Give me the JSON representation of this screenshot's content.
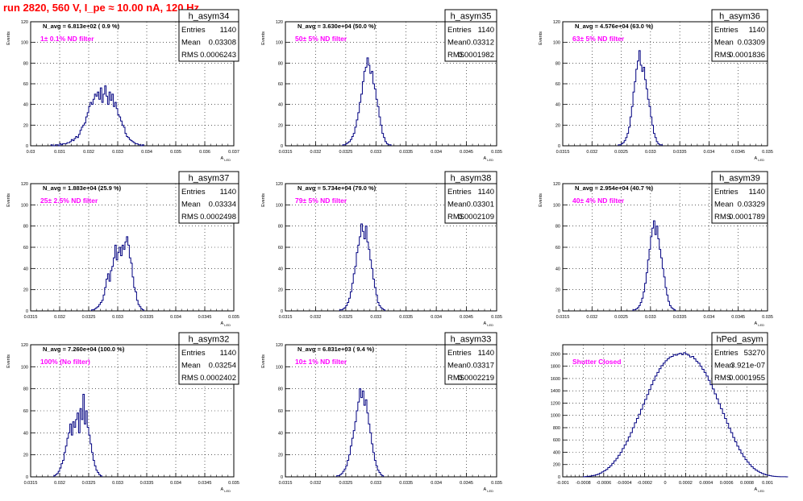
{
  "page_title": "run 2820,   560 V, I_pe ≈ 10.00 nA, 120 Hz",
  "chart_data": [
    {
      "type": "histogram",
      "name": "h_asym34",
      "ylabel": "Events",
      "xlabel": "A_LED",
      "xlim": [
        0.03,
        0.037
      ],
      "ylim": [
        0,
        120
      ],
      "xticks": [
        0.03,
        0.031,
        0.032,
        0.033,
        0.034,
        0.035,
        0.036,
        0.037
      ],
      "xtick_labels": [
        "0.03",
        "0.031",
        "0.032",
        "0.033",
        "0.034",
        "0.035",
        "0.036",
        "0.037"
      ],
      "yticks": [
        0,
        20,
        40,
        60,
        80,
        100,
        120
      ],
      "navg": "N_avg = 6.813e+02 ( 0.9 %)",
      "filter": "1± 0.1% ND filter",
      "stats": {
        "entries": "1140",
        "mean": "0.03308",
        "rms": "0.0006243"
      },
      "bin_start": 0.0307,
      "bin_width": 5e-05,
      "counts": [
        1,
        0,
        0,
        1,
        1,
        0,
        2,
        1,
        2,
        2,
        2,
        3,
        3,
        4,
        6,
        5,
        7,
        9,
        8,
        11,
        15,
        18,
        20,
        22,
        28,
        32,
        38,
        42,
        40,
        45,
        50,
        48,
        52,
        45,
        56,
        42,
        50,
        58,
        48,
        40,
        52,
        44,
        50,
        38,
        42,
        36,
        30,
        28,
        24,
        20,
        18,
        12,
        9,
        8,
        6,
        5,
        4,
        3,
        2,
        2,
        1,
        1,
        0,
        1
      ]
    },
    {
      "type": "histogram",
      "name": "h_asym35",
      "ylabel": "Events",
      "xlabel": "A_LED",
      "xlim": [
        0.0315,
        0.035
      ],
      "ylim": [
        0,
        120
      ],
      "xticks": [
        0.0315,
        0.032,
        0.0325,
        0.033,
        0.0335,
        0.034,
        0.0345,
        0.035
      ],
      "xtick_labels": [
        "0.0315",
        "0.032",
        "0.0325",
        "0.033",
        "0.0335",
        "0.034",
        "0.0345",
        "0.035"
      ],
      "yticks": [
        0,
        20,
        40,
        60,
        80,
        100,
        120
      ],
      "navg": "N_avg = 3.630e+04 (50.0 %)",
      "filter": "50± 5% ND filter",
      "stats": {
        "entries": "1140",
        "mean": "0.03312",
        "rms": "0.0001982"
      },
      "bin_start": 0.03245,
      "bin_width": 2.5e-05,
      "counts": [
        1,
        1,
        2,
        3,
        4,
        6,
        9,
        12,
        18,
        25,
        32,
        42,
        50,
        62,
        72,
        76,
        85,
        78,
        70,
        72,
        60,
        55,
        45,
        38,
        28,
        20,
        12,
        8,
        4,
        2,
        1,
        1
      ]
    },
    {
      "type": "histogram",
      "name": "h_asym36",
      "ylabel": "Events",
      "xlabel": "A_LED",
      "xlim": [
        0.0315,
        0.035
      ],
      "ylim": [
        0,
        120
      ],
      "xticks": [
        0.0315,
        0.032,
        0.0325,
        0.033,
        0.0335,
        0.034,
        0.0345,
        0.035
      ],
      "xtick_labels": [
        "0.0315",
        "0.032",
        "0.0325",
        "0.033",
        "0.0335",
        "0.034",
        "0.0345",
        "0.035"
      ],
      "yticks": [
        0,
        20,
        40,
        60,
        80,
        100,
        120
      ],
      "navg": "N_avg = 4.576e+04 (63.0 %)",
      "filter": "63± 5% ND filter",
      "stats": {
        "entries": "1140",
        "mean": "0.03309",
        "rms": "0.0001836"
      },
      "bin_start": 0.03245,
      "bin_width": 2.5e-05,
      "counts": [
        1,
        1,
        2,
        3,
        5,
        8,
        12,
        18,
        28,
        38,
        52,
        62,
        74,
        82,
        92,
        78,
        72,
        76,
        64,
        55,
        45,
        38,
        28,
        20,
        12,
        8,
        4,
        2,
        1,
        1
      ]
    },
    {
      "type": "histogram",
      "name": "h_asym37",
      "ylabel": "Events",
      "xlabel": "A_LED",
      "xlim": [
        0.0315,
        0.035
      ],
      "ylim": [
        0,
        120
      ],
      "xticks": [
        0.0315,
        0.032,
        0.0325,
        0.033,
        0.0335,
        0.034,
        0.0345,
        0.035
      ],
      "xtick_labels": [
        "0.0315",
        "0.032",
        "0.0325",
        "0.033",
        "0.0335",
        "0.034",
        "0.0345",
        "0.035"
      ],
      "yticks": [
        0,
        20,
        40,
        60,
        80,
        100,
        120
      ],
      "navg": "N_avg = 1.883e+04 (25.9 %)",
      "filter": "25± 2.5% ND filter",
      "stats": {
        "entries": "1140",
        "mean": "0.03334",
        "rms": "0.0002498"
      },
      "bin_start": 0.03255,
      "bin_width": 2.5e-05,
      "counts": [
        1,
        1,
        2,
        3,
        4,
        6,
        8,
        10,
        15,
        22,
        30,
        35,
        28,
        38,
        42,
        50,
        62,
        48,
        55,
        60,
        52,
        62,
        58,
        65,
        70,
        62,
        50,
        45,
        32,
        22,
        18,
        10,
        6,
        4,
        2,
        1
      ]
    },
    {
      "type": "histogram",
      "name": "h_asym38",
      "ylabel": "Events",
      "xlabel": "A_LED",
      "xlim": [
        0.0315,
        0.035
      ],
      "ylim": [
        0,
        120
      ],
      "xticks": [
        0.0315,
        0.032,
        0.0325,
        0.033,
        0.0335,
        0.034,
        0.0345,
        0.035
      ],
      "xtick_labels": [
        "0.0315",
        "0.032",
        "0.0325",
        "0.033",
        "0.0335",
        "0.034",
        "0.0345",
        "0.035"
      ],
      "yticks": [
        0,
        20,
        40,
        60,
        80,
        100,
        120
      ],
      "navg": "N_avg = 5.734e+04 (79.0 %)",
      "filter": "79± 5% ND filter",
      "stats": {
        "entries": "1140",
        "mean": "0.03301",
        "rms": "0.0002109"
      },
      "bin_start": 0.0324,
      "bin_width": 2.5e-05,
      "counts": [
        1,
        1,
        2,
        3,
        5,
        8,
        12,
        18,
        26,
        35,
        42,
        55,
        62,
        70,
        82,
        75,
        68,
        80,
        65,
        58,
        48,
        40,
        30,
        22,
        15,
        8,
        5,
        3,
        2,
        1
      ]
    },
    {
      "type": "histogram",
      "name": "h_asym39",
      "ylabel": "Events",
      "xlabel": "A_LED",
      "xlim": [
        0.0315,
        0.035
      ],
      "ylim": [
        0,
        120
      ],
      "xticks": [
        0.0315,
        0.032,
        0.0325,
        0.033,
        0.0335,
        0.034,
        0.0345,
        0.035
      ],
      "xtick_labels": [
        "0.0315",
        "0.032",
        "0.0325",
        "0.033",
        "0.0335",
        "0.034",
        "0.0345",
        "0.035"
      ],
      "yticks": [
        0,
        20,
        40,
        60,
        80,
        100,
        120
      ],
      "navg": "N_avg = 2.954e+04 (40.7 %)",
      "filter": "40± 4% ND filter",
      "stats": {
        "entries": "1140",
        "mean": "0.03329",
        "rms": "0.0001789"
      },
      "bin_start": 0.0327,
      "bin_width": 2.5e-05,
      "counts": [
        1,
        1,
        2,
        3,
        5,
        8,
        12,
        18,
        26,
        36,
        48,
        58,
        70,
        78,
        85,
        72,
        80,
        68,
        58,
        50,
        40,
        32,
        22,
        15,
        9,
        5,
        3,
        2,
        1
      ]
    },
    {
      "type": "histogram",
      "name": "h_asym32",
      "ylabel": "Events",
      "xlabel": "A_LED",
      "xlim": [
        0.0315,
        0.035
      ],
      "ylim": [
        0,
        120
      ],
      "xticks": [
        0.0315,
        0.032,
        0.0325,
        0.033,
        0.0335,
        0.034,
        0.0345,
        0.035
      ],
      "xtick_labels": [
        "0.0315",
        "0.032",
        "0.0325",
        "0.033",
        "0.0335",
        "0.034",
        "0.0345",
        "0.035"
      ],
      "yticks": [
        0,
        20,
        40,
        60,
        80,
        100,
        120
      ],
      "navg": "N_avg = 7.260e+04 (100.0 %)",
      "filter": "100% (No filter)",
      "stats": {
        "entries": "1140",
        "mean": "0.03254",
        "rms": "0.0002402"
      },
      "bin_start": 0.0319,
      "bin_width": 2.5e-05,
      "counts": [
        1,
        2,
        3,
        5,
        8,
        12,
        15,
        22,
        28,
        35,
        40,
        48,
        38,
        50,
        45,
        52,
        58,
        40,
        62,
        52,
        75,
        48,
        60,
        45,
        38,
        30,
        22,
        15,
        10,
        6,
        4,
        2,
        1
      ]
    },
    {
      "type": "histogram",
      "name": "h_asym33",
      "ylabel": "Events",
      "xlabel": "A_LED",
      "xlim": [
        0.0315,
        0.035
      ],
      "ylim": [
        0,
        120
      ],
      "xticks": [
        0.0315,
        0.032,
        0.0325,
        0.033,
        0.0335,
        0.034,
        0.0345,
        0.035
      ],
      "xtick_labels": [
        "0.0315",
        "0.032",
        "0.0325",
        "0.033",
        "0.0335",
        "0.034",
        "0.0345",
        "0.035"
      ],
      "yticks": [
        0,
        20,
        40,
        60,
        80,
        100,
        120
      ],
      "navg": "N_avg = 6.831e+03 ( 9.4 %)",
      "filter": "10± 1% ND filter",
      "stats": {
        "entries": "1140",
        "mean": "0.03317",
        "rms": "0.0002219"
      },
      "bin_start": 0.03235,
      "bin_width": 2.5e-05,
      "counts": [
        1,
        1,
        2,
        3,
        5,
        7,
        10,
        15,
        20,
        28,
        35,
        42,
        50,
        60,
        68,
        80,
        72,
        78,
        65,
        70,
        58,
        48,
        40,
        30,
        22,
        15,
        10,
        6,
        4,
        2,
        1
      ]
    },
    {
      "type": "histogram",
      "name": "hPed_asym",
      "ylabel": "",
      "xlabel": "A_LED",
      "xlim": [
        -0.001,
        0.001
      ],
      "ylim": [
        0,
        2150
      ],
      "xticks": [
        -0.001,
        -0.0008,
        -0.0006,
        -0.0004,
        -0.0002,
        0,
        0.0002,
        0.0004,
        0.0006,
        0.0008,
        0.001
      ],
      "xtick_labels": [
        "-0.001",
        "-0.0008",
        "-0.0006",
        "-0.0004",
        "-0.0002",
        "0",
        "0.0002",
        "0.0004",
        "0.0006",
        "0.0008",
        "0.001"
      ],
      "yticks": [
        0,
        200,
        400,
        600,
        800,
        1000,
        1200,
        1400,
        1600,
        1800,
        2000
      ],
      "navg": "",
      "filter": "Shutter Closed",
      "stats": {
        "entries": "53270",
        "mean": "3.921e-07",
        "rms": "0.0001955"
      },
      "bin_start": -0.0008,
      "bin_width": 2e-05,
      "counts": [
        2,
        5,
        8,
        12,
        18,
        25,
        35,
        45,
        60,
        80,
        100,
        120,
        150,
        180,
        220,
        260,
        300,
        350,
        400,
        460,
        520,
        580,
        650,
        720,
        800,
        880,
        950,
        1020,
        1100,
        1180,
        1260,
        1340,
        1420,
        1500,
        1570,
        1640,
        1700,
        1760,
        1810,
        1850,
        1890,
        1920,
        1950,
        1960,
        1990,
        1980,
        2000,
        2010,
        1990,
        2020,
        2000,
        1980,
        1950,
        1960,
        1920,
        1880,
        1850,
        1800,
        1750,
        1700,
        1640,
        1570,
        1500,
        1430,
        1350,
        1270,
        1190,
        1110,
        1030,
        950,
        870,
        790,
        720,
        640,
        570,
        500,
        440,
        380,
        330,
        280,
        240,
        200,
        165,
        135,
        110,
        90,
        70,
        55,
        42,
        32,
        24,
        18,
        12,
        8,
        5,
        3,
        2,
        1,
        1,
        0
      ]
    }
  ]
}
